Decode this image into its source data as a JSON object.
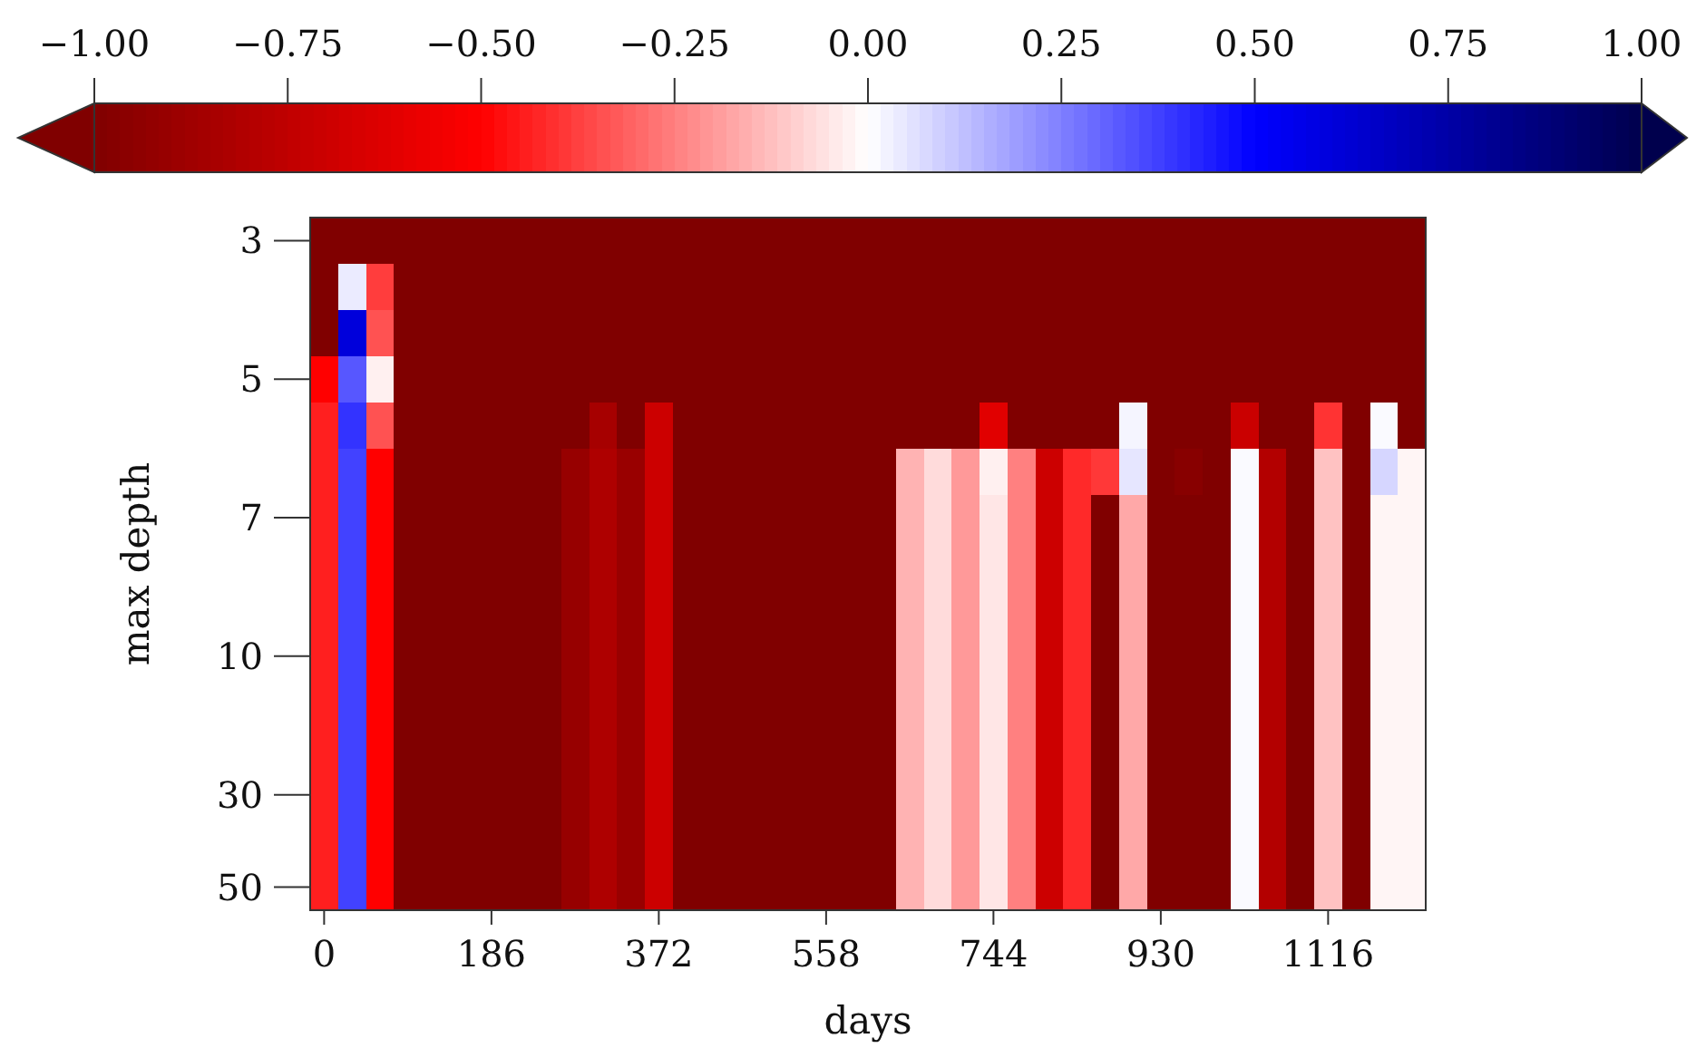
{
  "chart_data": {
    "type": "heatmap",
    "xlabel": "days",
    "ylabel": "max depth",
    "categories": [
      "0",
      null,
      null,
      null,
      null,
      null,
      "186",
      null,
      null,
      null,
      null,
      null,
      "372",
      null,
      null,
      null,
      null,
      null,
      "558",
      null,
      null,
      null,
      null,
      null,
      "744",
      null,
      null,
      null,
      null,
      null,
      "930",
      null,
      null,
      null,
      null,
      null,
      "1116",
      null,
      null,
      null
    ],
    "y_categories": [
      "3",
      null,
      null,
      "5",
      null,
      null,
      "7",
      null,
      null,
      "10",
      null,
      null,
      "30",
      null,
      "50"
    ],
    "clim": [
      -1,
      1
    ],
    "cticks": [
      {
        "value": -1,
        "label": "−1.00"
      },
      {
        "value": -0.75,
        "label": "−0.75"
      },
      {
        "value": -0.5,
        "label": "−0.50"
      },
      {
        "value": -0.25,
        "label": "−0.25"
      },
      {
        "value": 0,
        "label": "0.00"
      },
      {
        "value": 0.25,
        "label": "0.25"
      },
      {
        "value": 0.5,
        "label": "0.50"
      },
      {
        "value": 0.75,
        "label": "0.75"
      },
      {
        "value": 1,
        "label": "1.00"
      }
    ],
    "cells": [
      [
        -1,
        -1,
        -1,
        -1,
        -1,
        -1,
        -1,
        -1,
        -1,
        -1,
        -1,
        -1,
        -1,
        -1,
        -1,
        -1,
        -1,
        -1,
        -1,
        -1,
        -1,
        -1,
        -1,
        -1,
        -1,
        -1,
        -1,
        -1,
        -1,
        -1,
        -1,
        -1,
        -1,
        -1,
        -1,
        -1,
        -1,
        -1,
        -1,
        -1
      ],
      [
        -1,
        0.04,
        -0.38,
        -1,
        -1,
        -1,
        -1,
        -1,
        -1,
        -1,
        -1,
        -1,
        -1,
        -1,
        -1,
        -1,
        -1,
        -1,
        -1,
        -1,
        -1,
        -1,
        -1,
        -1,
        -1,
        -1,
        -1,
        -1,
        -1,
        -1,
        -1,
        -1,
        -1,
        -1,
        -1,
        -1,
        -1,
        -1,
        -1,
        -1
      ],
      [
        -1,
        0.6,
        -0.34,
        -1,
        -1,
        -1,
        -1,
        -1,
        -1,
        -1,
        -1,
        -1,
        -1,
        -1,
        -1,
        -1,
        -1,
        -1,
        -1,
        -1,
        -1,
        -1,
        -1,
        -1,
        -1,
        -1,
        -1,
        -1,
        -1,
        -1,
        -1,
        -1,
        -1,
        -1,
        -1,
        -1,
        -1,
        -1,
        -1,
        -1
      ],
      [
        -0.5,
        0.33,
        -0.03,
        -1,
        -1,
        -1,
        -1,
        -1,
        -1,
        -1,
        -1,
        -1,
        -1,
        -1,
        -1,
        -1,
        -1,
        -1,
        -1,
        -1,
        -1,
        -1,
        -1,
        -1,
        -1,
        -1,
        -1,
        -1,
        -1,
        -1,
        -1,
        -1,
        -1,
        -1,
        -1,
        -1,
        -1,
        -1,
        -1,
        -1
      ],
      [
        -0.44,
        0.4,
        -0.34,
        -1,
        -1,
        -1,
        -1,
        -1,
        -1,
        -1,
        -0.85,
        -1,
        -0.7,
        -1,
        -1,
        -1,
        -1,
        -1,
        -1,
        -1,
        -1,
        -1,
        -1,
        -1,
        -0.62,
        -1,
        -1,
        -1,
        -1,
        0.02,
        -1,
        -1,
        -1,
        -0.71,
        -1,
        -1,
        -0.4,
        -1,
        0.01,
        -1
      ],
      [
        -0.44,
        0.37,
        -0.5,
        -1,
        -1,
        -1,
        -1,
        -1,
        -1,
        -0.91,
        -0.82,
        -0.9,
        -0.7,
        -1,
        -1,
        -1,
        -1,
        -1,
        -1,
        -1,
        -1,
        -0.15,
        -0.07,
        -0.2,
        -0.03,
        -0.25,
        -0.7,
        -0.42,
        -0.39,
        0.05,
        -1,
        -0.97,
        -1,
        0.01,
        -0.8,
        -1,
        -0.12,
        -1,
        0.08,
        -0.02
      ],
      [
        -0.44,
        0.37,
        -0.5,
        -1,
        -1,
        -1,
        -1,
        -1,
        -1,
        -0.91,
        -0.82,
        -0.9,
        -0.7,
        -1,
        -1,
        -1,
        -1,
        -1,
        -1,
        -1,
        -1,
        -0.15,
        -0.07,
        -0.2,
        -0.05,
        -0.25,
        -0.7,
        -0.42,
        -1,
        -0.17,
        -1,
        -1,
        -1,
        0.01,
        -0.8,
        -1,
        -0.12,
        -1,
        -0.02,
        -0.02
      ],
      [
        -0.44,
        0.37,
        -0.5,
        -1,
        -1,
        -1,
        -1,
        -1,
        -1,
        -0.91,
        -0.82,
        -0.9,
        -0.7,
        -1,
        -1,
        -1,
        -1,
        -1,
        -1,
        -1,
        -1,
        -0.15,
        -0.07,
        -0.2,
        -0.05,
        -0.25,
        -0.7,
        -0.42,
        -1,
        -0.17,
        -1,
        -1,
        -1,
        0.01,
        -0.8,
        -1,
        -0.12,
        -1,
        -0.02,
        -0.02
      ],
      [
        -0.44,
        0.37,
        -0.5,
        -1,
        -1,
        -1,
        -1,
        -1,
        -1,
        -0.91,
        -0.82,
        -0.9,
        -0.7,
        -1,
        -1,
        -1,
        -1,
        -1,
        -1,
        -1,
        -1,
        -0.15,
        -0.07,
        -0.2,
        -0.05,
        -0.25,
        -0.7,
        -0.42,
        -1,
        -0.17,
        -1,
        -1,
        -1,
        0.01,
        -0.8,
        -1,
        -0.12,
        -1,
        -0.02,
        -0.02
      ],
      [
        -0.44,
        0.37,
        -0.5,
        -1,
        -1,
        -1,
        -1,
        -1,
        -1,
        -0.91,
        -0.82,
        -0.9,
        -0.7,
        -1,
        -1,
        -1,
        -1,
        -1,
        -1,
        -1,
        -1,
        -0.15,
        -0.07,
        -0.2,
        -0.05,
        -0.25,
        -0.7,
        -0.42,
        -1,
        -0.17,
        -1,
        -1,
        -1,
        0.01,
        -0.8,
        -1,
        -0.12,
        -1,
        -0.02,
        -0.02
      ],
      [
        -0.44,
        0.37,
        -0.5,
        -1,
        -1,
        -1,
        -1,
        -1,
        -1,
        -0.91,
        -0.82,
        -0.9,
        -0.7,
        -1,
        -1,
        -1,
        -1,
        -1,
        -1,
        -1,
        -1,
        -0.15,
        -0.07,
        -0.2,
        -0.05,
        -0.25,
        -0.7,
        -0.42,
        -1,
        -0.17,
        -1,
        -1,
        -1,
        0.01,
        -0.8,
        -1,
        -0.12,
        -1,
        -0.02,
        -0.02
      ],
      [
        -0.44,
        0.37,
        -0.5,
        -1,
        -1,
        -1,
        -1,
        -1,
        -1,
        -0.91,
        -0.82,
        -0.9,
        -0.7,
        -1,
        -1,
        -1,
        -1,
        -1,
        -1,
        -1,
        -1,
        -0.15,
        -0.07,
        -0.2,
        -0.05,
        -0.25,
        -0.7,
        -0.42,
        -1,
        -0.17,
        -1,
        -1,
        -1,
        0.01,
        -0.8,
        -1,
        -0.12,
        -1,
        -0.02,
        -0.02
      ],
      [
        -0.44,
        0.37,
        -0.5,
        -1,
        -1,
        -1,
        -1,
        -1,
        -1,
        -0.91,
        -0.82,
        -0.9,
        -0.7,
        -1,
        -1,
        -1,
        -1,
        -1,
        -1,
        -1,
        -1,
        -0.15,
        -0.07,
        -0.2,
        -0.05,
        -0.25,
        -0.7,
        -0.42,
        -1,
        -0.17,
        -1,
        -1,
        -1,
        0.01,
        -0.8,
        -1,
        -0.12,
        -1,
        -0.02,
        -0.02
      ],
      [
        -0.44,
        0.37,
        -0.5,
        -1,
        -1,
        -1,
        -1,
        -1,
        -1,
        -0.91,
        -0.82,
        -0.9,
        -0.7,
        -1,
        -1,
        -1,
        -1,
        -1,
        -1,
        -1,
        -1,
        -0.15,
        -0.07,
        -0.2,
        -0.05,
        -0.25,
        -0.7,
        -0.42,
        -1,
        -0.17,
        -1,
        -1,
        -1,
        0.01,
        -0.8,
        -1,
        -0.12,
        -1,
        -0.02,
        -0.02
      ],
      [
        -0.44,
        0.37,
        -0.5,
        -1,
        -1,
        -1,
        -1,
        -1,
        -1,
        -0.91,
        -0.82,
        -0.9,
        -0.7,
        -1,
        -1,
        -1,
        -1,
        -1,
        -1,
        -1,
        -1,
        -0.15,
        -0.07,
        -0.2,
        -0.05,
        -0.25,
        -0.7,
        -0.42,
        -1,
        -0.17,
        -1,
        -1,
        -1,
        0.01,
        -0.8,
        -1,
        -0.12,
        -1,
        -0.02,
        -0.02
      ]
    ]
  }
}
